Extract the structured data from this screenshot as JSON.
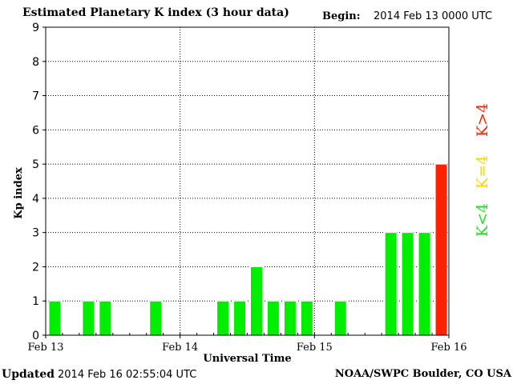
{
  "header": {
    "title": "Estimated Planetary K index (3 hour data)",
    "begin_label": "Begin:",
    "begin_value": "2014 Feb 13 0000 UTC"
  },
  "footer": {
    "updated_label": "Updated",
    "updated_value": "2014 Feb 16 02:55:04 UTC",
    "credit": "NOAA/SWPC Boulder, CO USA"
  },
  "chart_data": {
    "type": "bar",
    "title": "Estimated Planetary K index (3 hour data)",
    "xlabel": "Universal Time",
    "ylabel": "Kp index",
    "ylim": [
      0,
      9
    ],
    "yticks": [
      "0",
      "1",
      "2",
      "3",
      "4",
      "5",
      "6",
      "7",
      "8",
      "9"
    ],
    "xticks": [
      "Feb 13",
      "Feb 14",
      "Feb 15",
      "Feb 16"
    ],
    "grid": true,
    "interval_hours": 3,
    "values": [
      1,
      0,
      1,
      1,
      0,
      0,
      1,
      0,
      0,
      0,
      1,
      1,
      2,
      1,
      1,
      1,
      0,
      1,
      0,
      0,
      3,
      3,
      3,
      5
    ],
    "colors": {
      "below": "#00ee00",
      "equal": "#ffd700",
      "above": "#ff2200"
    },
    "legend": [
      {
        "label": "K<4",
        "color": "#22dd22"
      },
      {
        "label": "K=4",
        "color": "#ffd700"
      },
      {
        "label": "K>4",
        "color": "#ff2200"
      }
    ]
  }
}
